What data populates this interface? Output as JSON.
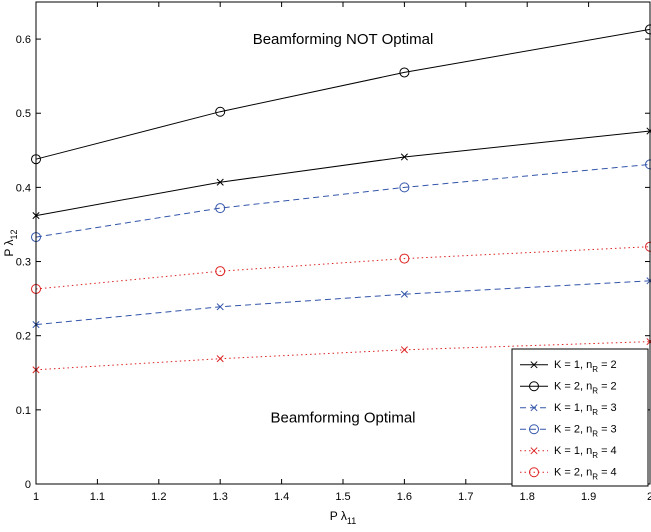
{
  "chart_data": {
    "type": "line",
    "xlabel": {
      "main": "P λ",
      "sub": "11"
    },
    "ylabel": {
      "main": "P λ",
      "sub": "12"
    },
    "xlim": [
      1,
      2
    ],
    "ylim": [
      0,
      0.65
    ],
    "xticks": [
      1,
      1.1,
      1.2,
      1.3,
      1.4,
      1.5,
      1.6,
      1.7,
      1.8,
      1.9,
      2
    ],
    "xtick_labels": [
      "1",
      "1.1",
      "1.2",
      "1.3",
      "1.4",
      "1.5",
      "1.6",
      "1.7",
      "1.8",
      "1.9",
      "2"
    ],
    "yticks": [
      0,
      0.1,
      0.2,
      0.3,
      0.4,
      0.5,
      0.6
    ],
    "ytick_labels": [
      "0",
      "0.1",
      "0.2",
      "0.3",
      "0.4",
      "0.5",
      "0.6"
    ],
    "grid": false,
    "legend_position": "bottom-right",
    "annotations": [
      {
        "text": "Beamforming NOT Optimal",
        "x": 1.5,
        "y": 0.6
      },
      {
        "text": "Beamforming Optimal",
        "x": 1.5,
        "y": 0.09
      }
    ],
    "series": [
      {
        "label": "K = 1, n",
        "sub": "R",
        "suffix": " = 2",
        "color": "#000000",
        "dash": "solid",
        "marker": "x",
        "x": [
          1,
          1.3,
          1.6,
          2
        ],
        "y": [
          0.362,
          0.407,
          0.441,
          0.476
        ]
      },
      {
        "label": "K = 2, n",
        "sub": "R",
        "suffix": " = 2",
        "color": "#000000",
        "dash": "solid",
        "marker": "o",
        "x": [
          1,
          1.3,
          1.6,
          2
        ],
        "y": [
          0.438,
          0.502,
          0.555,
          0.613
        ]
      },
      {
        "label": "K = 1, n",
        "sub": "R",
        "suffix": " = 3",
        "color": "#3355aa",
        "dash": "dashed",
        "marker": "x",
        "x": [
          1,
          1.3,
          1.6,
          2
        ],
        "y": [
          0.215,
          0.239,
          0.256,
          0.274
        ]
      },
      {
        "label": "K = 2, n",
        "sub": "R",
        "suffix": " = 3",
        "color": "#3355aa",
        "dash": "dashed",
        "marker": "o",
        "x": [
          1,
          1.3,
          1.6,
          2
        ],
        "y": [
          0.333,
          0.372,
          0.4,
          0.431
        ]
      },
      {
        "label": "K = 1, n",
        "sub": "R",
        "suffix": " = 4",
        "color": "#dd2222",
        "dash": "dotted",
        "marker": "x",
        "x": [
          1,
          1.3,
          1.6,
          2
        ],
        "y": [
          0.154,
          0.169,
          0.181,
          0.192
        ]
      },
      {
        "label": "K = 2, n",
        "sub": "R",
        "suffix": " = 4",
        "color": "#dd2222",
        "dash": "dotted",
        "marker": "o",
        "x": [
          1,
          1.3,
          1.6,
          2
        ],
        "y": [
          0.263,
          0.287,
          0.304,
          0.32
        ]
      }
    ]
  }
}
